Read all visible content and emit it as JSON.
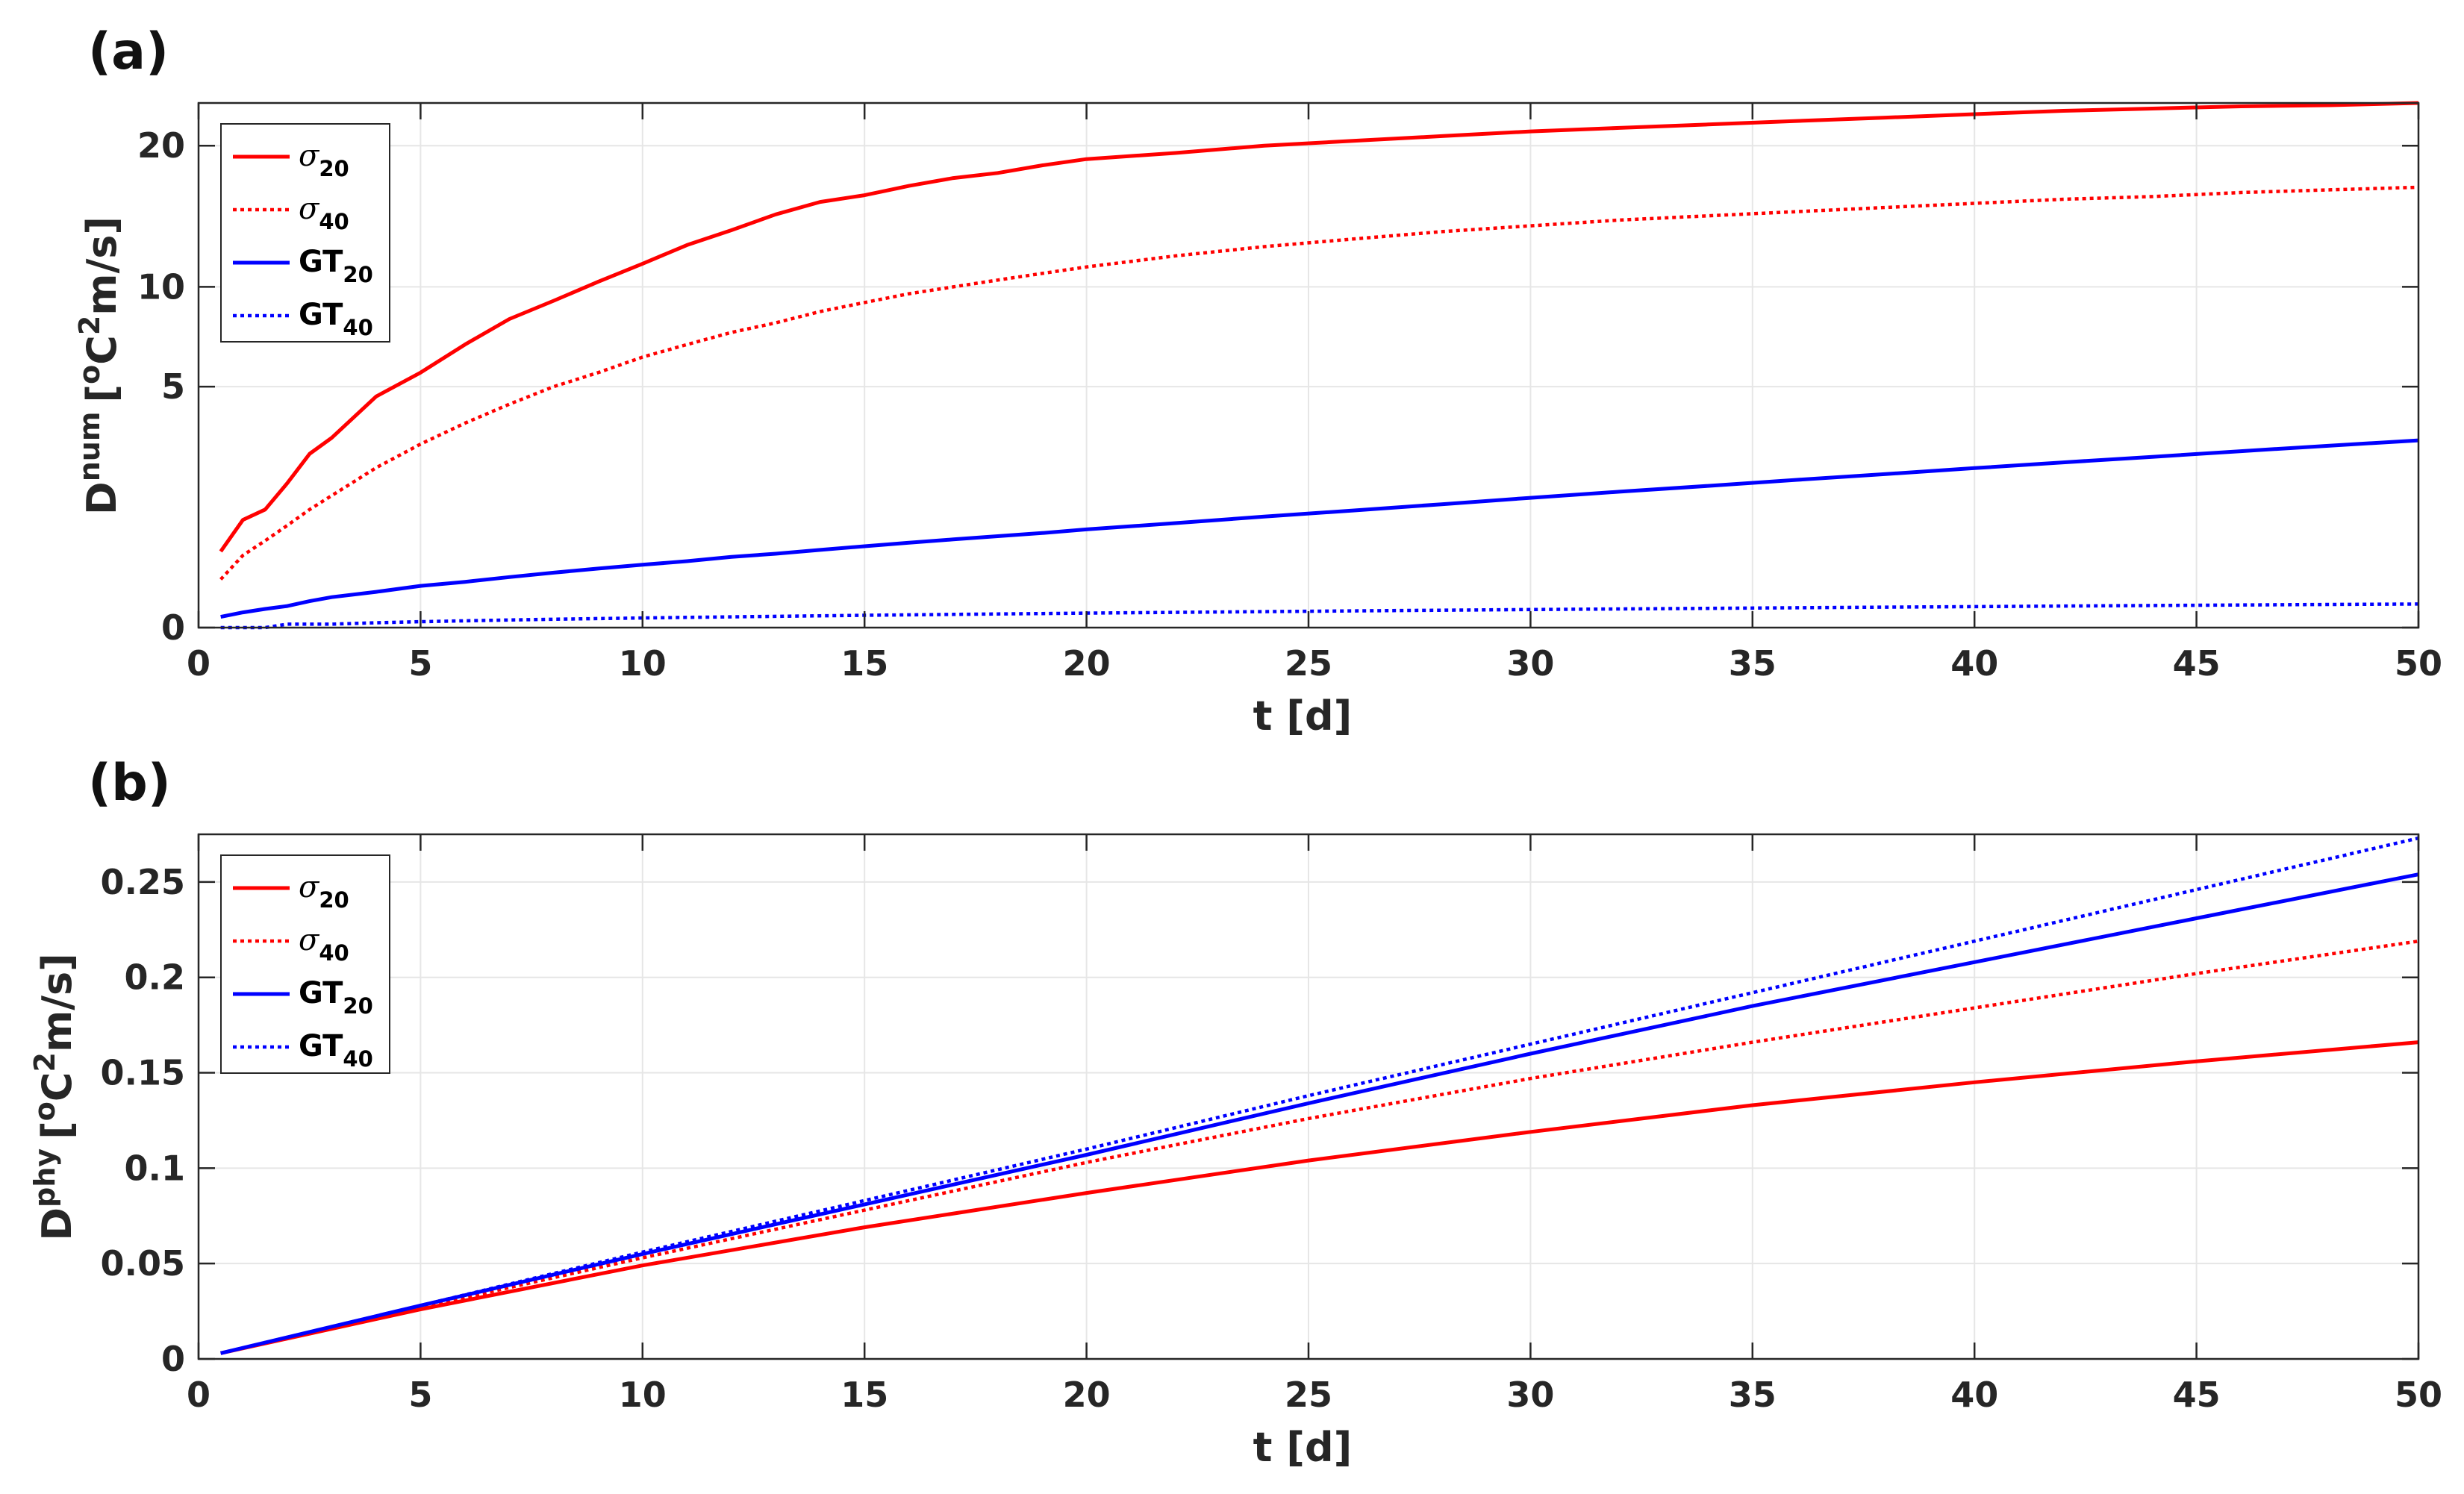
{
  "panels": {
    "a": {
      "label": "(a)",
      "ylabel_base": "D",
      "ylabel_sup": "num",
      "ylabel_unit_pre": "[",
      "ylabel_unit_sup_o": "o",
      "ylabel_unit_mid": "C",
      "ylabel_unit_sup_2": "2",
      "ylabel_unit_post": "m/s]",
      "xlabel": "t [d]"
    },
    "b": {
      "label": "(b)",
      "ylabel_base": "D",
      "ylabel_sup": "phy",
      "ylabel_unit_pre": "[",
      "ylabel_unit_sup_o": "o",
      "ylabel_unit_mid": "C",
      "ylabel_unit_sup_2": "2",
      "ylabel_unit_post": "m/s]",
      "xlabel": "t [d]"
    }
  },
  "legend": [
    {
      "base": "σ",
      "sub": "20",
      "color": "#ff0000",
      "style": "solid"
    },
    {
      "base": "σ",
      "sub": "40",
      "color": "#ff0000",
      "style": "dotted"
    },
    {
      "base": "GT",
      "sub": "20",
      "color": "#0000ff",
      "style": "solid"
    },
    {
      "base": "GT",
      "sub": "40",
      "color": "#0000ff",
      "style": "dotted"
    }
  ],
  "chart_data": [
    {
      "type": "line",
      "panel": "(a)",
      "xlabel": "t [d]",
      "ylabel": "D^num [oC2m/s]",
      "xlim": [
        0,
        50
      ],
      "ylim": [
        0,
        23.7
      ],
      "xticks": [
        0,
        5,
        10,
        15,
        20,
        25,
        30,
        35,
        40,
        45,
        50
      ],
      "yticks": [
        0,
        5,
        10,
        20
      ],
      "ytick_labels": [
        "0",
        "5",
        "10",
        "20"
      ],
      "y_scale": "sqrt",
      "grid": true,
      "legend_position": "top-left",
      "x": [
        0.5,
        1,
        1.5,
        2,
        2.5,
        3,
        4,
        5,
        6,
        7,
        8,
        9,
        10,
        11,
        12,
        13,
        14,
        15,
        16,
        17,
        18,
        19,
        20,
        22,
        24,
        26,
        28,
        30,
        32,
        34,
        36,
        38,
        40,
        42,
        44,
        46,
        48,
        50
      ],
      "series": [
        {
          "name": "σ20",
          "color": "#ff0000",
          "style": "solid",
          "values": [
            0.5,
            1.0,
            1.2,
            1.8,
            2.6,
            3.1,
            4.6,
            5.6,
            6.9,
            8.2,
            9.2,
            10.3,
            11.4,
            12.6,
            13.6,
            14.7,
            15.6,
            16.1,
            16.8,
            17.4,
            17.8,
            18.4,
            18.9,
            19.4,
            20.0,
            20.4,
            20.8,
            21.2,
            21.5,
            21.8,
            22.1,
            22.4,
            22.7,
            23.0,
            23.2,
            23.4,
            23.5,
            23.7
          ]
        },
        {
          "name": "σ40",
          "color": "#ff0000",
          "style": "dotted",
          "values": [
            0.2,
            0.45,
            0.65,
            0.9,
            1.2,
            1.5,
            2.2,
            2.9,
            3.6,
            4.3,
            5.0,
            5.6,
            6.3,
            6.9,
            7.5,
            8.0,
            8.6,
            9.1,
            9.6,
            10.0,
            10.4,
            10.8,
            11.2,
            11.9,
            12.5,
            13.0,
            13.5,
            13.9,
            14.3,
            14.6,
            14.9,
            15.2,
            15.5,
            15.8,
            16.0,
            16.3,
            16.5,
            16.7
          ]
        },
        {
          "name": "GT20",
          "color": "#0000ff",
          "style": "solid",
          "values": [
            0.01,
            0.02,
            0.03,
            0.04,
            0.06,
            0.08,
            0.11,
            0.15,
            0.18,
            0.22,
            0.26,
            0.3,
            0.34,
            0.38,
            0.43,
            0.47,
            0.52,
            0.57,
            0.62,
            0.67,
            0.72,
            0.77,
            0.83,
            0.94,
            1.06,
            1.18,
            1.31,
            1.45,
            1.59,
            1.73,
            1.88,
            2.03,
            2.19,
            2.35,
            2.51,
            2.68,
            2.85,
            3.02
          ]
        },
        {
          "name": "GT40",
          "color": "#0000ff",
          "style": "dotted",
          "values": [
            0.0,
            0.0,
            0.0,
            0.001,
            0.001,
            0.001,
            0.002,
            0.003,
            0.004,
            0.005,
            0.006,
            0.007,
            0.008,
            0.009,
            0.01,
            0.011,
            0.012,
            0.013,
            0.014,
            0.015,
            0.016,
            0.017,
            0.018,
            0.02,
            0.022,
            0.024,
            0.026,
            0.028,
            0.03,
            0.032,
            0.034,
            0.036,
            0.038,
            0.04,
            0.042,
            0.044,
            0.046,
            0.048
          ]
        }
      ]
    },
    {
      "type": "line",
      "panel": "(b)",
      "xlabel": "t [d]",
      "ylabel": "D^phy [oC2m/s]",
      "xlim": [
        0,
        50
      ],
      "ylim": [
        0,
        0.275
      ],
      "xticks": [
        0,
        5,
        10,
        15,
        20,
        25,
        30,
        35,
        40,
        45,
        50
      ],
      "yticks": [
        0,
        0.05,
        0.1,
        0.15,
        0.2,
        0.25
      ],
      "ytick_labels": [
        "0",
        "0.05",
        "0.1",
        "0.15",
        "0.2",
        "0.25"
      ],
      "y_scale": "linear",
      "grid": true,
      "legend_position": "top-left",
      "x": [
        0.5,
        5,
        10,
        15,
        20,
        25,
        30,
        35,
        40,
        45,
        50
      ],
      "series": [
        {
          "name": "σ20",
          "color": "#ff0000",
          "style": "solid",
          "values": [
            0.003,
            0.026,
            0.049,
            0.069,
            0.087,
            0.104,
            0.119,
            0.133,
            0.145,
            0.156,
            0.166
          ]
        },
        {
          "name": "σ40",
          "color": "#ff0000",
          "style": "dotted",
          "values": [
            0.003,
            0.027,
            0.053,
            0.078,
            0.103,
            0.126,
            0.147,
            0.166,
            0.184,
            0.202,
            0.219
          ]
        },
        {
          "name": "GT20",
          "color": "#0000ff",
          "style": "solid",
          "values": [
            0.003,
            0.028,
            0.055,
            0.081,
            0.107,
            0.134,
            0.16,
            0.185,
            0.208,
            0.231,
            0.254
          ]
        },
        {
          "name": "GT40",
          "color": "#0000ff",
          "style": "dotted",
          "values": [
            0.003,
            0.028,
            0.056,
            0.083,
            0.11,
            0.138,
            0.165,
            0.192,
            0.219,
            0.246,
            0.273
          ]
        }
      ]
    }
  ]
}
